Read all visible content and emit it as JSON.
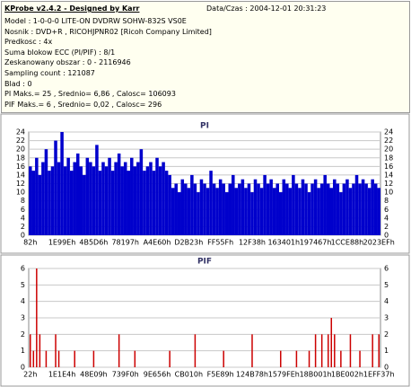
{
  "header": {
    "title": "KProbe v2.4.2 - Designed by Karr",
    "datetime": "Data/Czas : 2004-12-01 20:31:23",
    "lines": [
      "Model : 1-0-0-0 LITE-ON DVDRW SOHW-832S  VS0E",
      "Nosnik : DVD+R , RICOHJPNR02 [Ricoh Company Limited]",
      "Predkosc : 4x",
      "Suma blokow ECC (PI/PIF) : 8/1",
      "Zeskanowany obszar : 0 - 2116946",
      "Sampling count : 121087",
      "Blad : 0",
      "PI Maks.= 25 , Srednio= 6,86 , Calosc= 106093",
      "PIF Maks.= 6 , Srednio= 0,02 , Calosc= 296"
    ]
  },
  "chart_data": [
    {
      "type": "bar",
      "title": "PI",
      "color": "#0000cc",
      "ylim": [
        0,
        24
      ],
      "yticks": [
        0,
        2,
        4,
        6,
        8,
        10,
        12,
        14,
        16,
        18,
        20,
        22,
        24
      ],
      "grid": true,
      "categories": [
        "82h",
        null,
        null,
        null,
        null,
        null,
        null,
        null,
        null,
        null,
        "1E99Eh",
        null,
        null,
        null,
        null,
        null,
        null,
        null,
        null,
        null,
        "4B5D6h",
        null,
        null,
        null,
        null,
        null,
        null,
        null,
        null,
        null,
        "78197h",
        null,
        null,
        null,
        null,
        null,
        null,
        null,
        null,
        null,
        "A4E60h",
        null,
        null,
        null,
        null,
        null,
        null,
        null,
        null,
        null,
        "D2B23h",
        null,
        null,
        null,
        null,
        null,
        null,
        null,
        null,
        null,
        "FF55Fh",
        null,
        null,
        null,
        null,
        null,
        null,
        null,
        null,
        null,
        "12F38h",
        null,
        null,
        null,
        null,
        null,
        null,
        null,
        null,
        null,
        "163401h",
        null,
        null,
        null,
        null,
        null,
        null,
        null,
        null,
        null,
        "197467h",
        null,
        null,
        null,
        null,
        null,
        null,
        null,
        null,
        null,
        "1CCE88h",
        null,
        null,
        null,
        null,
        null,
        null,
        null,
        null,
        null,
        "2023EFh"
      ],
      "values": [
        16,
        15,
        18,
        14,
        17,
        20,
        15,
        16,
        22,
        17,
        24,
        16,
        18,
        15,
        17,
        19,
        16,
        14,
        18,
        17,
        16,
        21,
        15,
        17,
        16,
        18,
        15,
        17,
        19,
        16,
        17,
        15,
        18,
        16,
        17,
        20,
        15,
        16,
        17,
        15,
        18,
        16,
        17,
        15,
        14,
        11,
        12,
        10,
        13,
        12,
        11,
        14,
        12,
        10,
        13,
        12,
        11,
        15,
        12,
        11,
        13,
        12,
        10,
        12,
        14,
        11,
        12,
        13,
        11,
        12,
        10,
        13,
        12,
        11,
        14,
        12,
        13,
        11,
        12,
        10,
        13,
        12,
        11,
        14,
        12,
        11,
        13,
        12,
        10,
        12,
        13,
        11,
        12,
        14,
        12,
        11,
        13,
        12,
        10,
        12,
        13,
        11,
        12,
        14,
        12,
        13,
        12,
        11,
        13,
        12,
        11
      ]
    },
    {
      "type": "bar",
      "title": "PIF",
      "color": "#cc0000",
      "ylim": [
        0,
        6
      ],
      "yticks": [
        0,
        1,
        2,
        3,
        4,
        5,
        6
      ],
      "grid": true,
      "categories": [
        "22h",
        null,
        null,
        null,
        null,
        null,
        null,
        null,
        null,
        null,
        "1E1E4h",
        null,
        null,
        null,
        null,
        null,
        null,
        null,
        null,
        null,
        "48E09h",
        null,
        null,
        null,
        null,
        null,
        null,
        null,
        null,
        null,
        "739F0h",
        null,
        null,
        null,
        null,
        null,
        null,
        null,
        null,
        null,
        "9E656h",
        null,
        null,
        null,
        null,
        null,
        null,
        null,
        null,
        null,
        "CB010h",
        null,
        null,
        null,
        null,
        null,
        null,
        null,
        null,
        null,
        "F5E89h",
        null,
        null,
        null,
        null,
        null,
        null,
        null,
        null,
        null,
        "124B78h",
        null,
        null,
        null,
        null,
        null,
        null,
        null,
        null,
        null,
        "1579FEh",
        null,
        null,
        null,
        null,
        null,
        null,
        null,
        null,
        null,
        "18B001h",
        null,
        null,
        null,
        null,
        null,
        null,
        null,
        null,
        null,
        "1BE002h",
        null,
        null,
        null,
        null,
        null,
        null,
        null,
        null,
        null,
        "1EFF37h"
      ],
      "values": [
        2,
        1,
        6,
        2,
        0,
        1,
        0,
        0,
        2,
        1,
        0,
        0,
        0,
        0,
        1,
        0,
        0,
        0,
        0,
        0,
        1,
        0,
        0,
        0,
        0,
        0,
        0,
        0,
        2,
        0,
        0,
        0,
        0,
        1,
        0,
        0,
        0,
        0,
        0,
        0,
        0,
        0,
        0,
        0,
        1,
        0,
        0,
        0,
        0,
        0,
        0,
        0,
        2,
        0,
        0,
        0,
        0,
        0,
        0,
        0,
        0,
        1,
        0,
        0,
        0,
        0,
        0,
        0,
        0,
        0,
        2,
        0,
        0,
        0,
        0,
        0,
        0,
        0,
        0,
        1,
        0,
        0,
        0,
        0,
        1,
        0,
        0,
        0,
        1,
        0,
        2,
        0,
        2,
        0,
        2,
        3,
        2,
        0,
        1,
        0,
        0,
        2,
        0,
        0,
        1,
        0,
        0,
        0,
        2,
        0,
        2
      ]
    }
  ]
}
